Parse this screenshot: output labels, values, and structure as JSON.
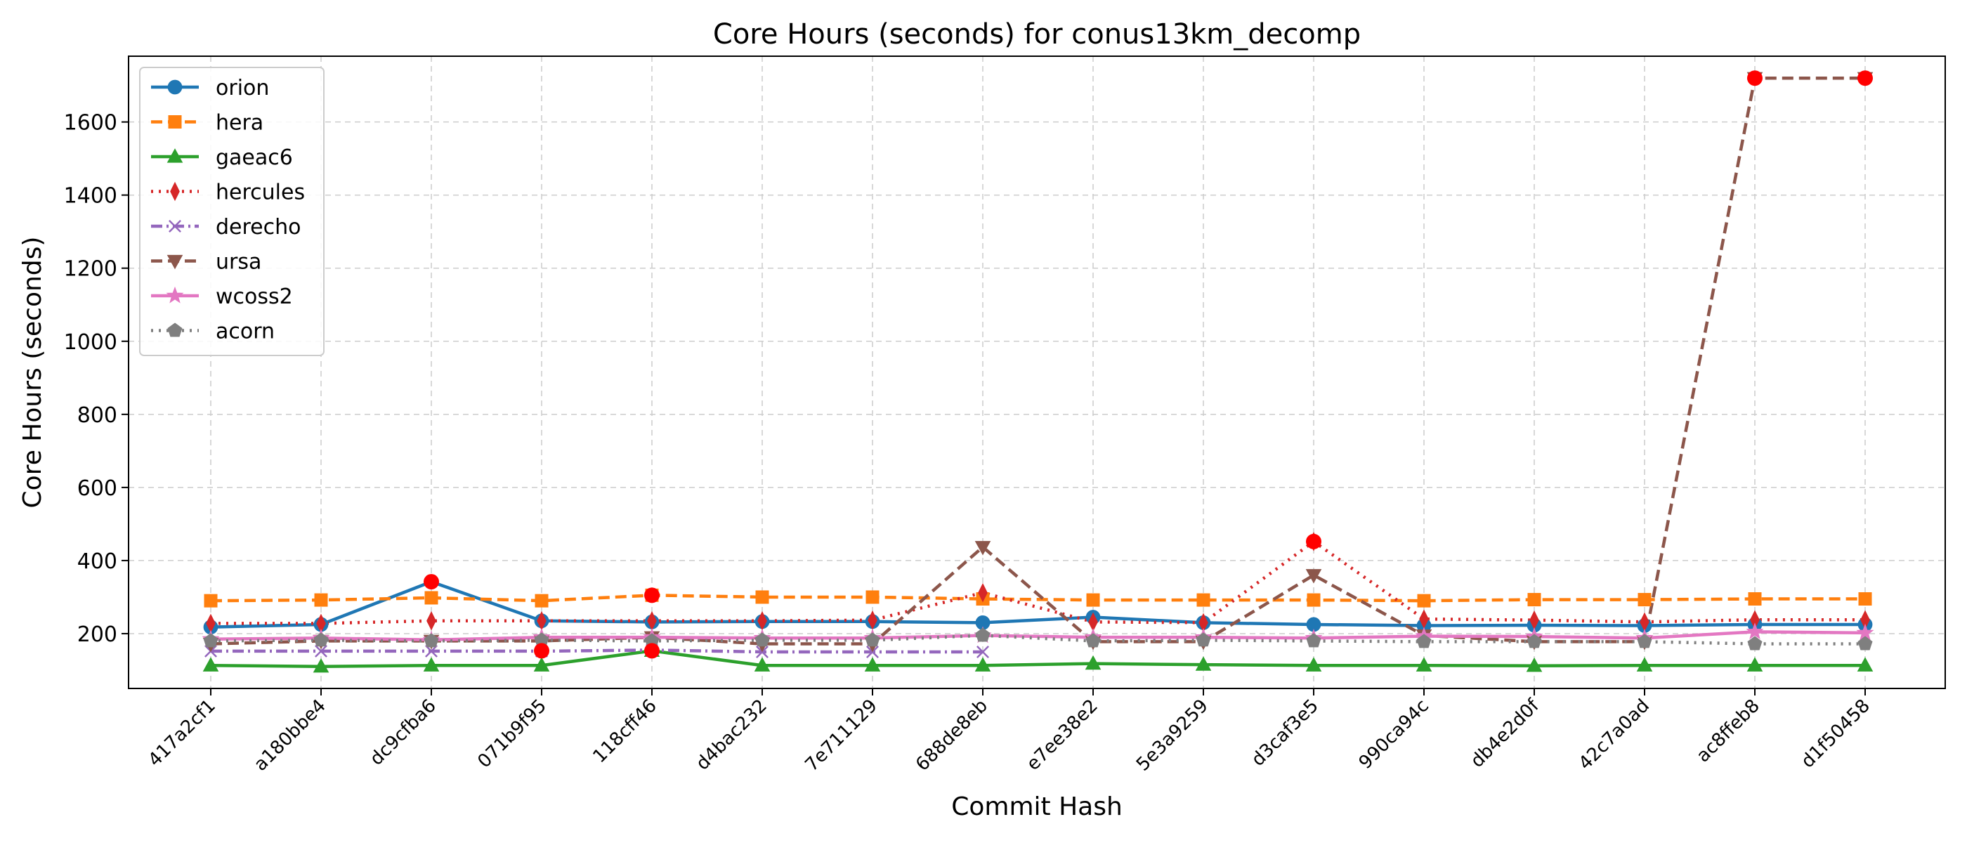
{
  "chart_data": {
    "type": "line",
    "title": "Core Hours (seconds) for conus13km_decomp",
    "xlabel": "Commit Hash",
    "ylabel": "Core Hours (seconds)",
    "categories": [
      "417a2cf1",
      "a180bbe4",
      "dc9cfba6",
      "071b9f95",
      "118cff46",
      "d4bac232",
      "7e711129",
      "688de8eb",
      "e7ee38e2",
      "5e3a9259",
      "d3caf3e5",
      "990ca94c",
      "db4e2d0f",
      "42c7a0ad",
      "ac8ffeb8",
      "d1f50458"
    ],
    "ylim": [
      50,
      1780
    ],
    "yticks": [
      200,
      400,
      600,
      800,
      1000,
      1200,
      1400,
      1600
    ],
    "grid": true,
    "legend_position": "top-left",
    "highlight_color": "#ff0000",
    "series": [
      {
        "name": "orion",
        "color": "#1f77b4",
        "dash": "solid",
        "marker": "circle",
        "values": [
          218,
          225,
          342,
          235,
          232,
          233,
          233,
          230,
          245,
          230,
          225,
          222,
          223,
          222,
          225,
          225
        ]
      },
      {
        "name": "hera",
        "color": "#ff7f0e",
        "dash": "dashed",
        "marker": "square",
        "values": [
          290,
          292,
          298,
          290,
          305,
          300,
          300,
          295,
          292,
          292,
          292,
          290,
          293,
          293,
          295,
          295
        ]
      },
      {
        "name": "gaeac6",
        "color": "#2ca02c",
        "dash": "solid",
        "marker": "triangle-up",
        "values": [
          113,
          110,
          113,
          113,
          153,
          113,
          113,
          113,
          118,
          115,
          113,
          113,
          112,
          113,
          113,
          113
        ]
      },
      {
        "name": "hercules",
        "color": "#d62728",
        "dash": "dotted",
        "marker": "thin-diamond",
        "values": [
          228,
          228,
          235,
          235,
          235,
          235,
          237,
          312,
          232,
          230,
          452,
          240,
          237,
          232,
          238,
          238
        ]
      },
      {
        "name": "derecho",
        "color": "#9467bd",
        "dash": "dashdot",
        "marker": "x",
        "values": [
          152,
          152,
          152,
          152,
          155,
          150,
          150,
          150,
          null,
          null,
          null,
          null,
          null,
          null,
          null,
          null
        ]
      },
      {
        "name": "ursa",
        "color": "#8c564b",
        "dash": "dashed",
        "marker": "triangle-down",
        "values": [
          172,
          180,
          180,
          180,
          190,
          172,
          172,
          437,
          178,
          178,
          360,
          195,
          178,
          178,
          1720,
          1720
        ]
      },
      {
        "name": "wcoss2",
        "color": "#e377c2",
        "dash": "solid",
        "marker": "star",
        "values": [
          185,
          188,
          183,
          190,
          190,
          188,
          188,
          195,
          190,
          190,
          188,
          193,
          192,
          188,
          205,
          202
        ]
      },
      {
        "name": "acorn",
        "color": "#7f7f7f",
        "dash": "dotted",
        "marker": "pentagon",
        "values": [
          180,
          182,
          180,
          182,
          180,
          182,
          182,
          195,
          180,
          182,
          180,
          178,
          178,
          178,
          172,
          172
        ]
      }
    ],
    "highlights": [
      {
        "x": "dc9cfba6",
        "y": 342
      },
      {
        "x": "071b9f95",
        "y": 153
      },
      {
        "x": "118cff46",
        "y": 305
      },
      {
        "x": "118cff46",
        "y": 153
      },
      {
        "x": "d3caf3e5",
        "y": 452
      },
      {
        "x": "ac8ffeb8",
        "y": 1720
      },
      {
        "x": "d1f50458",
        "y": 1720
      }
    ]
  }
}
